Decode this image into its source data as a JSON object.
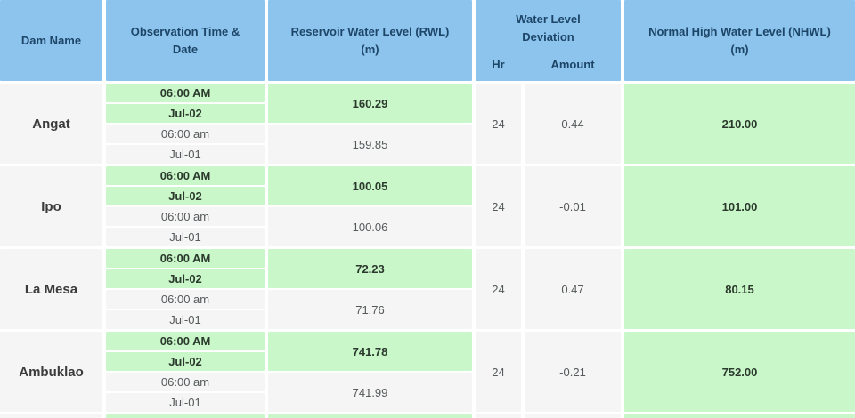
{
  "colors": {
    "header_bg": "#8dc4ed",
    "header_text": "#1d4568",
    "highlight_green_bg": "#c9f7c9",
    "row_gray_bg": "#f5f5f6",
    "green_text": "#2b3a2d",
    "gray_text": "#55595a",
    "dam_text": "#3b3b3b"
  },
  "table": {
    "headers": {
      "dam_name": "Dam Name",
      "observation": "Observation Time & Date",
      "rwl": "Reservoir Water Level (RWL)",
      "unit_m": "(m)",
      "deviation": "Water Level Deviation",
      "deviation_hr": "Hr",
      "deviation_amount": "Amount",
      "nhwl": "Normal High Water Level (NHWL)"
    },
    "rows": [
      {
        "dam": "Angat",
        "latest_time": "06:00 AM",
        "latest_date": "Jul-02",
        "latest_rwl": "160.29",
        "prev_time": "06:00 am",
        "prev_date": "Jul-01",
        "prev_rwl": "159.85",
        "dev_hr": "24",
        "dev_amount": "0.44",
        "nhwl": "210.00"
      },
      {
        "dam": "Ipo",
        "latest_time": "06:00 AM",
        "latest_date": "Jul-02",
        "latest_rwl": "100.05",
        "prev_time": "06:00 am",
        "prev_date": "Jul-01",
        "prev_rwl": "100.06",
        "dev_hr": "24",
        "dev_amount": "-0.01",
        "nhwl": "101.00"
      },
      {
        "dam": "La Mesa",
        "latest_time": "06:00 AM",
        "latest_date": "Jul-02",
        "latest_rwl": "72.23",
        "prev_time": "06:00 am",
        "prev_date": "Jul-01",
        "prev_rwl": "71.76",
        "dev_hr": "24",
        "dev_amount": "0.47",
        "nhwl": "80.15"
      },
      {
        "dam": "Ambuklao",
        "latest_time": "06:00 AM",
        "latest_date": "Jul-02",
        "latest_rwl": "741.78",
        "prev_time": "06:00 am",
        "prev_date": "Jul-01",
        "prev_rwl": "741.99",
        "dev_hr": "24",
        "dev_amount": "-0.21",
        "nhwl": "752.00"
      }
    ]
  }
}
